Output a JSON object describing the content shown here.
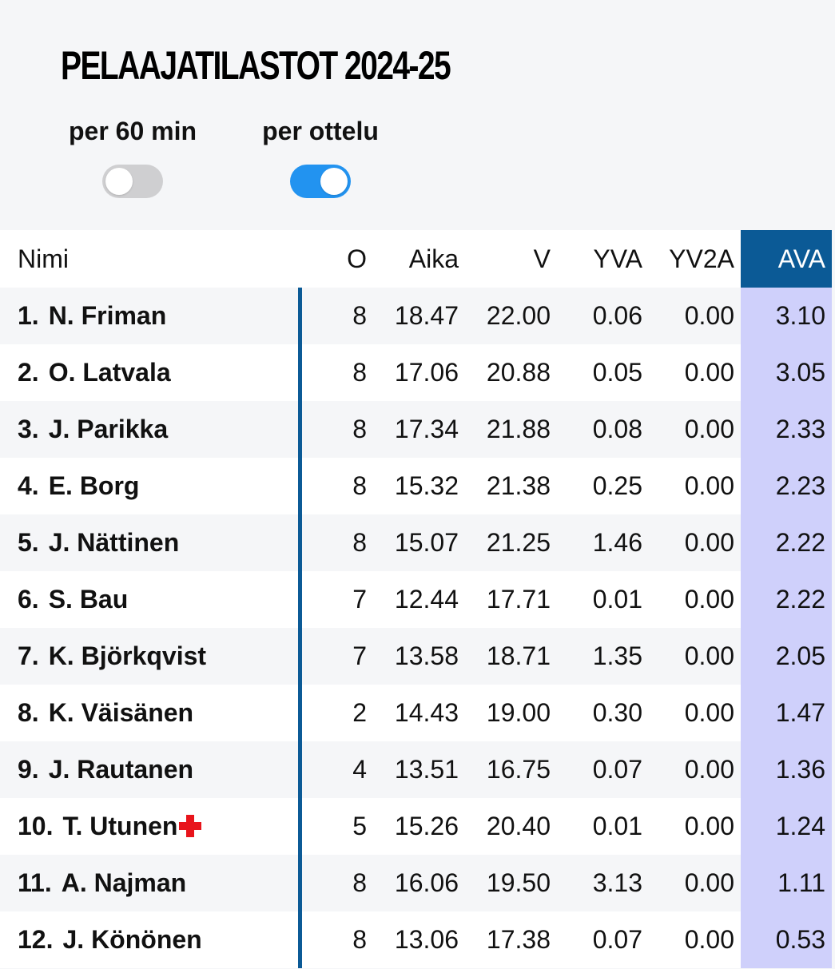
{
  "title": "PELAAJATILASTOT 2024-25",
  "toggles": [
    {
      "label": "per 60 min",
      "on": false
    },
    {
      "label": "per ottelu",
      "on": true
    }
  ],
  "columns": {
    "name": "Nimi",
    "o": "O",
    "aika": "Aika",
    "v": "V",
    "yva": "YVA",
    "yv2a": "YV2A",
    "ava": "AVA"
  },
  "players": [
    {
      "rank": "1.",
      "name": "N. Friman",
      "o": "8",
      "aika": "18.47",
      "v": "22.00",
      "yva": "0.06",
      "yv2a": "0.00",
      "ava": "3.10",
      "injured": false
    },
    {
      "rank": "2.",
      "name": "O. Latvala",
      "o": "8",
      "aika": "17.06",
      "v": "20.88",
      "yva": "0.05",
      "yv2a": "0.00",
      "ava": "3.05",
      "injured": false
    },
    {
      "rank": "3.",
      "name": "J. Parikka",
      "o": "8",
      "aika": "17.34",
      "v": "21.88",
      "yva": "0.08",
      "yv2a": "0.00",
      "ava": "2.33",
      "injured": false
    },
    {
      "rank": "4.",
      "name": "E. Borg",
      "o": "8",
      "aika": "15.32",
      "v": "21.38",
      "yva": "0.25",
      "yv2a": "0.00",
      "ava": "2.23",
      "injured": false
    },
    {
      "rank": "5.",
      "name": "J. Nättinen",
      "o": "8",
      "aika": "15.07",
      "v": "21.25",
      "yva": "1.46",
      "yv2a": "0.00",
      "ava": "2.22",
      "injured": false
    },
    {
      "rank": "6.",
      "name": "S. Bau",
      "o": "7",
      "aika": "12.44",
      "v": "17.71",
      "yva": "0.01",
      "yv2a": "0.00",
      "ava": "2.22",
      "injured": false
    },
    {
      "rank": "7.",
      "name": "K. Björkqvist",
      "o": "7",
      "aika": "13.58",
      "v": "18.71",
      "yva": "1.35",
      "yv2a": "0.00",
      "ava": "2.05",
      "injured": false
    },
    {
      "rank": "8.",
      "name": "K. Väisänen",
      "o": "2",
      "aika": "14.43",
      "v": "19.00",
      "yva": "0.30",
      "yv2a": "0.00",
      "ava": "1.47",
      "injured": false
    },
    {
      "rank": "9.",
      "name": "J. Rautanen",
      "o": "4",
      "aika": "13.51",
      "v": "16.75",
      "yva": "0.07",
      "yv2a": "0.00",
      "ava": "1.36",
      "injured": false
    },
    {
      "rank": "10.",
      "name": "T. Utunen",
      "o": "5",
      "aika": "15.26",
      "v": "20.40",
      "yva": "0.01",
      "yv2a": "0.00",
      "ava": "1.24",
      "injured": true
    },
    {
      "rank": "11.",
      "name": "A. Najman",
      "o": "8",
      "aika": "16.06",
      "v": "19.50",
      "yva": "3.13",
      "yv2a": "0.00",
      "ava": "1.11",
      "injured": false
    },
    {
      "rank": "12.",
      "name": "J. Könönen",
      "o": "8",
      "aika": "13.06",
      "v": "17.38",
      "yva": "0.07",
      "yv2a": "0.00",
      "ava": "0.53",
      "injured": false
    }
  ],
  "colors": {
    "background": "#f5f6f8",
    "accent": "#0b5a96",
    "toggle_on": "#2293f0",
    "toggle_off": "#cfcfd1",
    "highlight_column": "#cfd0fb",
    "injury": "#e8141b"
  },
  "icons": {
    "injury": "red-cross-icon"
  }
}
